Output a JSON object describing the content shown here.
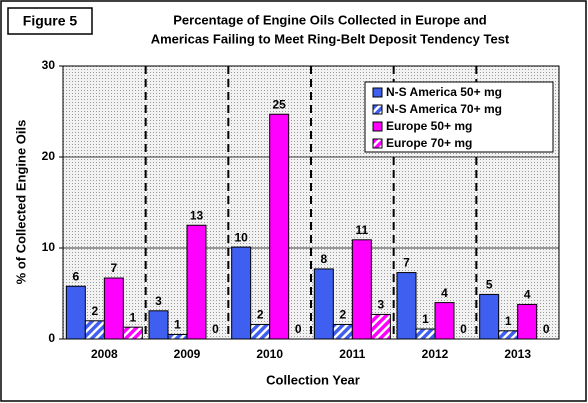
{
  "chart_data": {
    "type": "bar",
    "figure_label": "Figure 5",
    "title": [
      "Percentage of Engine Oils Collected in Europe and",
      "Americas Failing to Meet Ring-Belt Deposit Tendency Test"
    ],
    "x_label": "Collection Year",
    "y_label": "% of Collected Engine Oils",
    "categories": [
      "2008",
      "2009",
      "2010",
      "2011",
      "2012",
      "2013"
    ],
    "series": [
      {
        "name": "N-S America 50+ mg",
        "color": "#3f5ff0",
        "hatch": false,
        "values": [
          5.8,
          3.1,
          10.1,
          7.7,
          7.3,
          4.9
        ],
        "value_labels": [
          "6",
          "3",
          "10",
          "8",
          "7",
          "5"
        ]
      },
      {
        "name": "N-S America 70+ mg",
        "color": "#3f5ff0",
        "hatch": true,
        "values": [
          2.0,
          0.5,
          1.6,
          1.6,
          1.1,
          0.9
        ],
        "value_labels": [
          "2",
          "1",
          "2",
          "2",
          "1",
          "1"
        ]
      },
      {
        "name": "Europe 50+ mg",
        "color": "#ff00ff",
        "hatch": false,
        "values": [
          6.7,
          12.5,
          24.7,
          10.9,
          4.0,
          3.8
        ],
        "value_labels": [
          "7",
          "13",
          "25",
          "11",
          "4",
          "4"
        ]
      },
      {
        "name": "Europe 70+ mg",
        "color": "#ff00ff",
        "hatch": true,
        "values": [
          1.3,
          0,
          0,
          2.7,
          0,
          0
        ],
        "value_labels": [
          "1",
          "0",
          "0",
          "3",
          "0",
          "0"
        ]
      }
    ],
    "ylim": [
      0,
      30
    ],
    "yticks": [
      0,
      10,
      20,
      30
    ],
    "grid": true,
    "legend": "upper right"
  }
}
